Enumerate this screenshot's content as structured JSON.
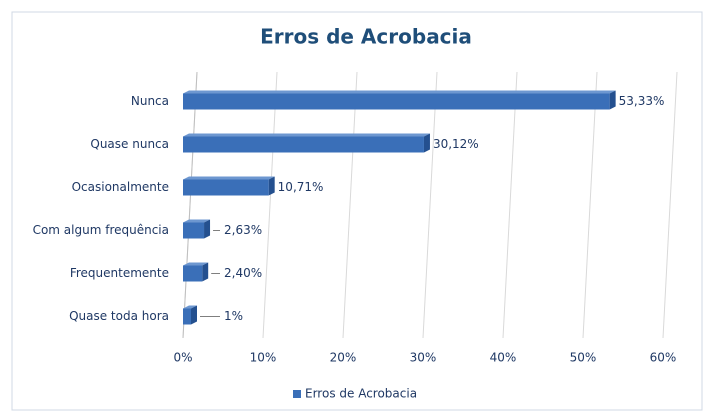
{
  "chart_data": {
    "type": "hbar",
    "title": "Erros de Acrobacia",
    "categories": [
      "Nunca",
      "Quase nunca",
      "Ocasionalmente",
      "Com algum frequência",
      "Frequentemente",
      "Quase toda hora"
    ],
    "series": [
      {
        "name": "Erros de Acrobacia",
        "color": "#3a6fb8",
        "values": [
          53.33,
          30.12,
          10.71,
          2.63,
          2.4,
          1
        ],
        "value_labels": [
          "53,33%",
          "30,12%",
          "10,71%",
          "2,63%",
          "2,40%",
          "1%"
        ]
      }
    ],
    "xlim": [
      0,
      60
    ],
    "xticks": [
      {
        "value": 0,
        "label": "0%"
      },
      {
        "value": 10,
        "label": "10%"
      },
      {
        "value": 20,
        "label": "20%"
      },
      {
        "value": 30,
        "label": "30%"
      },
      {
        "value": 40,
        "label": "40%"
      },
      {
        "value": 50,
        "label": "50%"
      },
      {
        "value": 60,
        "label": "60%"
      }
    ],
    "grid": true,
    "legend": "bottom"
  }
}
